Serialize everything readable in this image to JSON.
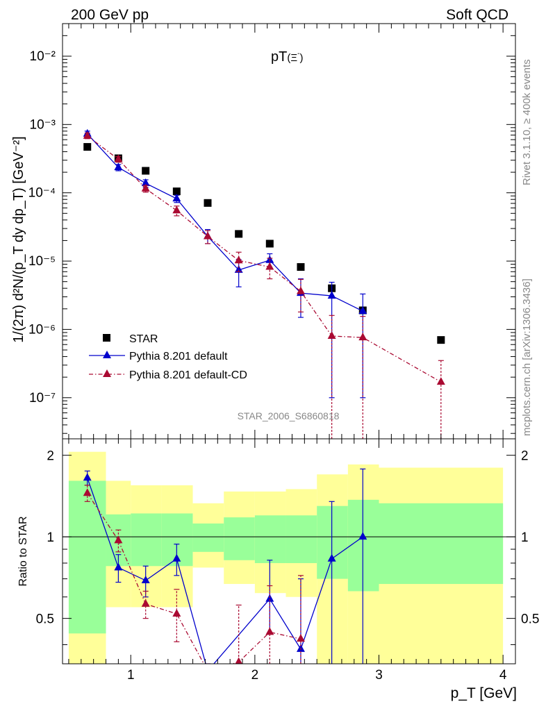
{
  "header": {
    "left": "200 GeV pp",
    "right": "Soft QCD",
    "plot_title": "pT",
    "plot_title_particle": "(Ξ",
    "plot_title_sup": "-",
    "plot_title_close": ")",
    "side_top": "Rivet 3.1.10, ≥ 400k events",
    "side_bottom": "mcplots.cern.ch [arXiv:1306.3436]",
    "watermark": "STAR_2006_S6860818"
  },
  "colors": {
    "star": "#000000",
    "pythia": "#0000cc",
    "pythia_cd": "#aa0a32",
    "band_green": "#99ff99",
    "band_yellow": "#ffff99",
    "ref_line": "#000000"
  },
  "chart_data": [
    {
      "type": "scatter",
      "panel": "main",
      "ylabel": "1/(2π) d²N/(p_T dy dp_T) [GeV⁻²]",
      "yscale": "log",
      "xlim": [
        0.45,
        4.1
      ],
      "ylim": [
        2.5e-08,
        0.03
      ],
      "y_ticks": [
        "10⁻²",
        "10⁻³",
        "10⁻⁴",
        "10⁻⁵",
        "10⁻⁶",
        "10⁻⁷"
      ],
      "legend": {
        "position": "bottom-left",
        "entries": [
          "STAR",
          "Pythia 8.201 default",
          "Pythia 8.201 default-CD"
        ]
      },
      "series": [
        {
          "name": "STAR",
          "style": "square-markers",
          "x": [
            0.65,
            0.9,
            1.12,
            1.37,
            1.62,
            1.87,
            2.12,
            2.37,
            2.62,
            2.87,
            3.5
          ],
          "y": [
            0.00047,
            0.00032,
            0.00021,
            0.000105,
            7.1e-05,
            2.5e-05,
            1.8e-05,
            8.2e-06,
            4e-06,
            1.9e-06,
            7e-07
          ]
        },
        {
          "name": "Pythia 8.201 default",
          "style": "line-triangles",
          "x": [
            0.65,
            0.9,
            1.12,
            1.37,
            1.62,
            1.87,
            2.12,
            2.37,
            2.62,
            2.87
          ],
          "y": [
            0.00073,
            0.000235,
            0.000138,
            8.2e-05,
            2.3e-05,
            7.4e-06,
            1.03e-05,
            3.4e-06,
            3.1e-06,
            1.85e-06
          ],
          "err_low": [
            0.00066,
            0.00021,
            0.00012,
            7.2e-05,
            1.8e-05,
            4.2e-06,
            7.8e-06,
            1.5e-06,
            1e-07,
            1e-07
          ],
          "err_high": [
            0.0008,
            0.00026,
            0.000155,
            9.2e-05,
            2.9e-05,
            1.05e-05,
            1.28e-05,
            5.5e-06,
            4.9e-06,
            3.3e-06
          ]
        },
        {
          "name": "Pythia 8.201 default-CD",
          "style": "dashdot-triangles",
          "x": [
            0.65,
            0.9,
            1.12,
            1.37,
            1.62,
            1.87,
            2.12,
            2.37,
            2.62,
            2.87,
            3.5
          ],
          "y": [
            0.00068,
            0.00031,
            0.000115,
            5.5e-05,
            2.3e-05,
            1.02e-05,
            8.2e-06,
            3.6e-06,
            8e-07,
            7.6e-07,
            1.7e-07
          ],
          "err_low": [
            0.00062,
            0.00028,
            0.000102,
            4.6e-05,
            1.8e-05,
            7e-06,
            5.5e-06,
            1.8e-06,
            1e-08,
            1e-08,
            1e-08
          ],
          "err_high": [
            0.00075,
            0.00034,
            0.000128,
            6.4e-05,
            2.8e-05,
            1.35e-05,
            1.1e-05,
            5.4e-06,
            1.6e-06,
            1.55e-06,
            3.5e-07
          ]
        }
      ]
    },
    {
      "type": "scatter",
      "panel": "ratio",
      "xlabel": "p_T [GeV]",
      "ylabel": "Ratio to STAR",
      "yscale": "log",
      "xlim": [
        0.45,
        4.1
      ],
      "ylim": [
        0.34,
        2.3
      ],
      "x_ticks": [
        1,
        2,
        3,
        4
      ],
      "y_ticks": [
        0.5,
        1,
        2
      ],
      "bands": [
        {
          "x0": 0.5,
          "x1": 0.8,
          "g_lo": 0.44,
          "g_hi": 1.61,
          "y_lo": 0.33,
          "y_hi": 2.06
        },
        {
          "x0": 0.8,
          "x1": 1.0,
          "g_lo": 0.78,
          "g_hi": 1.21,
          "y_lo": 0.55,
          "y_hi": 1.61
        },
        {
          "x0": 1.0,
          "x1": 1.25,
          "g_lo": 0.78,
          "g_hi": 1.22,
          "y_lo": 0.55,
          "y_hi": 1.55
        },
        {
          "x0": 1.25,
          "x1": 1.5,
          "g_lo": 0.78,
          "g_hi": 1.22,
          "y_lo": 0.55,
          "y_hi": 1.55
        },
        {
          "x0": 1.5,
          "x1": 1.75,
          "g_lo": 0.88,
          "g_hi": 1.12,
          "y_lo": 0.77,
          "y_hi": 1.33
        },
        {
          "x0": 1.75,
          "x1": 2.0,
          "g_lo": 0.82,
          "g_hi": 1.18,
          "y_lo": 0.67,
          "y_hi": 1.47
        },
        {
          "x0": 2.0,
          "x1": 2.25,
          "g_lo": 0.8,
          "g_hi": 1.2,
          "y_lo": 0.62,
          "y_hi": 1.47
        },
        {
          "x0": 2.25,
          "x1": 2.5,
          "g_lo": 0.8,
          "g_hi": 1.2,
          "y_lo": 0.6,
          "y_hi": 1.5
        },
        {
          "x0": 2.5,
          "x1": 2.75,
          "g_lo": 0.7,
          "g_hi": 1.3,
          "y_lo": 0.33,
          "y_hi": 1.7
        },
        {
          "x0": 2.75,
          "x1": 3.0,
          "g_lo": 0.63,
          "g_hi": 1.37,
          "y_lo": 0.33,
          "y_hi": 1.85
        },
        {
          "x0": 3.0,
          "x1": 4.0,
          "g_lo": 0.67,
          "g_hi": 1.33,
          "y_lo": 0.33,
          "y_hi": 1.8
        }
      ],
      "series": [
        {
          "name": "Pythia 8.201 default",
          "x": [
            0.65,
            0.9,
            1.12,
            1.37,
            1.62,
            2.12,
            2.37,
            2.62,
            2.87
          ],
          "y": [
            1.65,
            0.77,
            0.69,
            0.83,
            0.32,
            0.59,
            0.385,
            0.83,
            1.0
          ],
          "err_low": [
            1.55,
            0.68,
            0.6,
            0.72,
            0.3,
            0.44,
            0.18,
            0.05,
            0.05
          ],
          "err_high": [
            1.75,
            0.86,
            0.78,
            0.94,
            0.34,
            0.82,
            0.7,
            1.35,
            1.78
          ]
        },
        {
          "name": "Pythia 8.201 default-CD",
          "x": [
            0.65,
            0.9,
            1.12,
            1.37,
            1.62,
            1.87,
            2.12,
            2.37
          ],
          "y": [
            1.45,
            0.97,
            0.565,
            0.52,
            0.32,
            0.345,
            0.445,
            0.42
          ],
          "err_low": [
            1.35,
            0.88,
            0.5,
            0.41,
            0.3,
            0.3,
            0.3,
            0.2
          ],
          "err_high": [
            1.55,
            1.06,
            0.63,
            0.64,
            0.34,
            0.56,
            0.66,
            0.72
          ]
        }
      ]
    }
  ]
}
